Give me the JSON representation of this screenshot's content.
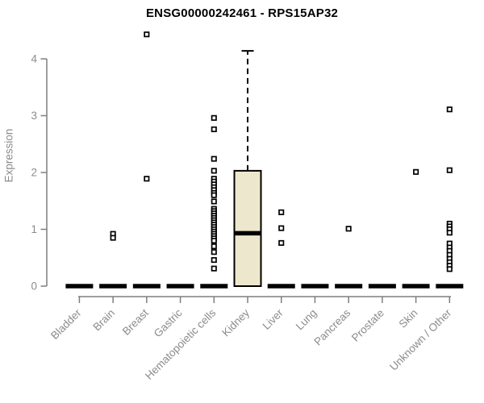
{
  "chart_data": {
    "type": "boxplot",
    "title": "ENSG00000242461 - RPS15AP32",
    "ylabel": "Expression",
    "xlabel": "",
    "ylim": [
      0,
      4.45
    ],
    "yticks": [
      0,
      1,
      2,
      3,
      4
    ],
    "grid": false,
    "legend": "none",
    "x_tick_rotation": 45,
    "categories": [
      "Bladder",
      "Brain",
      "Breast",
      "Gastric",
      "Hematopoietic cells",
      "Kidney",
      "Liver",
      "Lung",
      "Pancreas",
      "Prostate",
      "Skin",
      "Unknown / Other"
    ],
    "boxes": [
      {
        "category": "Bladder",
        "q1": 0,
        "median": 0,
        "q3": 0,
        "whisker_low": 0,
        "whisker_high": 0,
        "outliers": []
      },
      {
        "category": "Brain",
        "q1": 0,
        "median": 0,
        "q3": 0,
        "whisker_low": 0,
        "whisker_high": 0,
        "outliers": [
          0.92,
          0.85
        ]
      },
      {
        "category": "Breast",
        "q1": 0,
        "median": 0,
        "q3": 0,
        "whisker_low": 0,
        "whisker_high": 0,
        "outliers": [
          4.43,
          1.89
        ]
      },
      {
        "category": "Gastric",
        "q1": 0,
        "median": 0,
        "q3": 0,
        "whisker_low": 0,
        "whisker_high": 0,
        "outliers": []
      },
      {
        "category": "Hematopoietic cells",
        "q1": 0,
        "median": 0,
        "q3": 0,
        "whisker_low": 0,
        "whisker_high": 0,
        "outliers": [
          2.96,
          2.76,
          2.24,
          2.03,
          1.89,
          1.84,
          1.79,
          1.74,
          1.69,
          1.64,
          1.6,
          1.49,
          1.36,
          1.32,
          1.28,
          1.24,
          1.2,
          1.16,
          1.12,
          1.08,
          1.04,
          1.0,
          0.96,
          0.92,
          0.88,
          0.84,
          0.8,
          0.7,
          0.6,
          0.46,
          0.31
        ]
      },
      {
        "category": "Kidney",
        "q1": 0,
        "median": 0.93,
        "q3": 2.03,
        "whisker_low": 0,
        "whisker_high": 4.14,
        "outliers": []
      },
      {
        "category": "Liver",
        "q1": 0,
        "median": 0,
        "q3": 0,
        "whisker_low": 0,
        "whisker_high": 0,
        "outliers": [
          1.3,
          1.02,
          0.76
        ]
      },
      {
        "category": "Lung",
        "q1": 0,
        "median": 0,
        "q3": 0,
        "whisker_low": 0,
        "whisker_high": 0,
        "outliers": []
      },
      {
        "category": "Pancreas",
        "q1": 0,
        "median": 0,
        "q3": 0,
        "whisker_low": 0,
        "whisker_high": 0,
        "outliers": [
          1.01
        ]
      },
      {
        "category": "Prostate",
        "q1": 0,
        "median": 0,
        "q3": 0,
        "whisker_low": 0,
        "whisker_high": 0,
        "outliers": []
      },
      {
        "category": "Skin",
        "q1": 0,
        "median": 0,
        "q3": 0,
        "whisker_low": 0,
        "whisker_high": 0,
        "outliers": [
          2.01
        ]
      },
      {
        "category": "Unknown / Other",
        "q1": 0,
        "median": 0,
        "q3": 0,
        "whisker_low": 0,
        "whisker_high": 0,
        "outliers": [
          3.11,
          2.04,
          1.1,
          1.05,
          1.0,
          0.94,
          0.75,
          0.68,
          0.62,
          0.55,
          0.48,
          0.42,
          0.36,
          0.3
        ]
      }
    ],
    "colors": {
      "title": "#000000",
      "axis": "#7F7F7F",
      "tick_labels": "#8B8B8B",
      "box_fill": "#EDE7CD",
      "box_border": "#000000",
      "median": "#000000",
      "whisker": "#000000",
      "outlier_stroke": "#000000",
      "outlier_fill": "#FFFFFF",
      "background": "#FFFFFF"
    }
  }
}
